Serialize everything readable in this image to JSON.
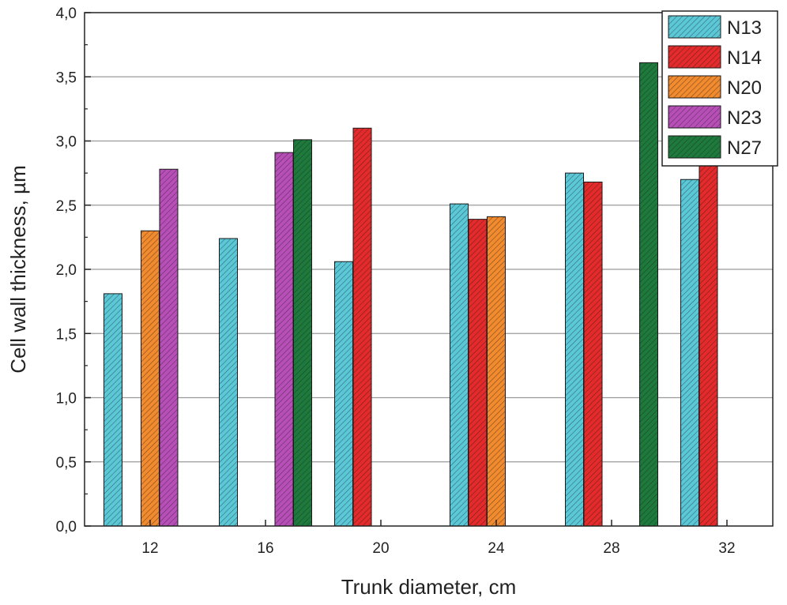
{
  "chart_data": {
    "type": "bar",
    "xlabel": "Trunk diameter, cm",
    "ylabel": "Cell wall thickness, µm",
    "ylim": [
      0,
      4.0
    ],
    "yticks": [
      "0,0",
      "0,5",
      "1,0",
      "1,5",
      "2,0",
      "2,5",
      "3,0",
      "3,5",
      "4,0"
    ],
    "categories": [
      "12",
      "16",
      "20",
      "24",
      "28",
      "32"
    ],
    "grid": "horizontal",
    "legend_position": "top-right",
    "series": [
      {
        "name": "N13",
        "color": "#5bc8d8",
        "values": [
          1.81,
          2.24,
          2.06,
          2.51,
          2.75,
          2.7
        ]
      },
      {
        "name": "N14",
        "color": "#e42a2a",
        "values": [
          null,
          null,
          3.1,
          2.39,
          2.68,
          2.81
        ]
      },
      {
        "name": "N20",
        "color": "#f28a2e",
        "values": [
          2.3,
          null,
          null,
          2.41,
          null,
          null
        ]
      },
      {
        "name": "N23",
        "color": "#b84fb8",
        "values": [
          2.78,
          2.91,
          null,
          null,
          null,
          null
        ]
      },
      {
        "name": "N27",
        "color": "#1e7a3c",
        "values": [
          null,
          3.01,
          null,
          null,
          3.61,
          null
        ]
      }
    ]
  }
}
